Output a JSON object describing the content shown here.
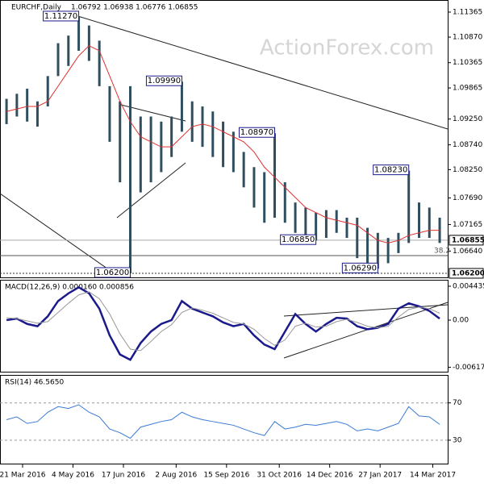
{
  "chart_data": [
    {
      "type": "ohlc",
      "title": "EURCHF,Daily",
      "quote": "1.06792 1.06938 1.06776 1.06855",
      "watermark": "ActionForex.com",
      "x": [
        -14,
        -5,
        4,
        13,
        22,
        31,
        40,
        49,
        58,
        67,
        76,
        85,
        94,
        103,
        112,
        121,
        130,
        139,
        148,
        157,
        166,
        175,
        184,
        193,
        202,
        211,
        220,
        229,
        238,
        247,
        256,
        265,
        274,
        283,
        292,
        301,
        310,
        319,
        328,
        337,
        346,
        355,
        364
      ],
      "xlim": [
        -19.7,
        371
      ],
      "xticks": [
        {
          "value": 0,
          "label": "21 Mar 2016"
        },
        {
          "value": 44,
          "label": "4 May 2016"
        },
        {
          "value": 88,
          "label": "17 Jun 2016"
        },
        {
          "value": 134,
          "label": "2 Aug 2016"
        },
        {
          "value": 178,
          "label": "15 Sep 2016"
        },
        {
          "value": 224,
          "label": "31 Oct 2016"
        },
        {
          "value": 268,
          "label": "14 Dec 2016"
        },
        {
          "value": 312,
          "label": "27 Jan 2017"
        },
        {
          "value": 358,
          "label": "14 Mar 2017"
        }
      ],
      "series": [
        {
          "name": "high",
          "color": "#2f4f5f",
          "values": [
            1.0965,
            1.0975,
            1.0985,
            1.096,
            1.101,
            1.1075,
            1.109,
            1.1127,
            1.111,
            1.108,
            1.099,
            1.096,
            1.099,
            1.093,
            1.093,
            1.092,
            1.093,
            1.0999,
            1.096,
            1.095,
            1.094,
            1.092,
            1.09,
            1.086,
            1.083,
            1.082,
            1.0897,
            1.08,
            1.076,
            1.075,
            1.074,
            1.0745,
            1.0745,
            1.073,
            1.073,
            1.071,
            1.07,
            1.069,
            1.07,
            1.0823,
            1.076,
            1.075,
            1.073
          ]
        },
        {
          "name": "low",
          "color": "#2f4f5f",
          "values": [
            1.0915,
            1.093,
            1.092,
            1.091,
            1.095,
            1.101,
            1.103,
            1.106,
            1.104,
            1.099,
            1.088,
            1.08,
            1.062,
            1.078,
            1.08,
            1.082,
            1.085,
            1.09,
            1.088,
            1.087,
            1.085,
            1.083,
            1.082,
            1.079,
            1.075,
            1.072,
            1.073,
            1.072,
            1.07,
            1.069,
            1.0685,
            1.069,
            1.07,
            1.069,
            1.065,
            1.064,
            1.0629,
            1.064,
            1.066,
            1.068,
            1.069,
            1.069,
            1.068
          ]
        },
        {
          "name": "ma",
          "color": "#e03030",
          "values": [
            1.094,
            1.0945,
            1.095,
            1.095,
            1.096,
            1.099,
            1.102,
            1.105,
            1.107,
            1.106,
            1.101,
            1.096,
            1.092,
            1.089,
            1.088,
            1.087,
            1.087,
            1.089,
            1.091,
            1.0915,
            1.091,
            1.09,
            1.089,
            1.088,
            1.086,
            1.083,
            1.081,
            1.079,
            1.077,
            1.075,
            1.074,
            1.073,
            1.0725,
            1.072,
            1.0715,
            1.07,
            1.0685,
            1.068,
            1.0685,
            1.0695,
            1.07,
            1.0705,
            1.0705
          ]
        }
      ],
      "ylim": [
        1.06104,
        1.11604
      ],
      "yticks": [
        1.11365,
        {
          "value": 1.1087,
          "label": "1.10870"
        },
        1.10365,
        1.09865,
        {
          "value": 1.0925,
          "label": "1.09250"
        },
        {
          "value": 1.0874,
          "label": "1.08740"
        },
        {
          "value": 1.0825,
          "label": "1.08250"
        },
        {
          "value": 1.0769,
          "label": "1.07690"
        },
        1.07165,
        {
          "value": 1.0664,
          "label": "1.06640"
        }
      ],
      "current": {
        "value": 1.06855,
        "label": "1.06855"
      },
      "support": {
        "value": 1.062,
        "label": "1.06200"
      },
      "fib": {
        "value": 1.0655,
        "label": "38.2"
      },
      "annotations": [
        {
          "x": 49,
          "value": 1.1127,
          "label": "1.11270"
        },
        {
          "x": 139,
          "value": 1.0999,
          "label": "1.09990"
        },
        {
          "x": 220,
          "value": 1.0897,
          "label": "1.08970"
        },
        {
          "x": 337,
          "value": 1.0823,
          "label": "1.08230"
        },
        {
          "x": 256,
          "value": 1.0685,
          "label": "1.06850"
        },
        {
          "x": 310,
          "value": 1.0629,
          "label": "1.06290"
        },
        {
          "x": 94,
          "value": 1.062,
          "label": "1.06200"
        }
      ]
    },
    {
      "type": "line",
      "title": "MACD(12,26,9) 0.000160 0.000856",
      "series": [
        {
          "name": "macd",
          "color": "#1a1a8c",
          "values": [
            0.0,
            0.0002,
            -0.0005,
            -0.0008,
            0.0005,
            0.0025,
            0.0035,
            0.0043,
            0.0035,
            0.0015,
            -0.002,
            -0.0045,
            -0.0052,
            -0.003,
            -0.0015,
            -0.0005,
            0.0,
            0.0025,
            0.0015,
            0.001,
            0.0005,
            -0.0003,
            -0.0008,
            -0.0005,
            -0.002,
            -0.0032,
            -0.0038,
            -0.0015,
            0.0008,
            -0.0005,
            -0.0015,
            -0.0005,
            0.0003,
            0.0002,
            -0.0008,
            -0.0012,
            -0.001,
            -0.0005,
            0.0015,
            0.0022,
            0.0018,
            0.0012,
            0.0002
          ]
        },
        {
          "name": "signal",
          "color": "#999999",
          "values": [
            0.0003,
            0.0002,
            -0.0001,
            -0.0004,
            -0.0002,
            0.001,
            0.0022,
            0.0033,
            0.0037,
            0.0028,
            0.0008,
            -0.0018,
            -0.0038,
            -0.004,
            -0.0028,
            -0.0015,
            -0.0006,
            0.001,
            0.0016,
            0.0013,
            0.0009,
            0.0003,
            -0.0003,
            -0.0005,
            -0.0012,
            -0.0024,
            -0.0033,
            -0.0026,
            -0.0008,
            -0.0004,
            -0.0009,
            -0.0008,
            -0.0002,
            0.0001,
            -0.0003,
            -0.0008,
            -0.001,
            -0.0008,
            0.0004,
            0.0014,
            0.0017,
            0.0015,
            0.0009
          ]
        }
      ],
      "ylim": [
        -0.00686,
        0.00528
      ],
      "yticks": [
        0.004435,
        {
          "value": 0,
          "label": "0.00"
        },
        -0.00617
      ]
    },
    {
      "type": "line",
      "title": "RSI(14) 46.5650",
      "series": [
        {
          "name": "rsi",
          "color": "#3a7bd5",
          "values": [
            52,
            55,
            48,
            50,
            60,
            66,
            64,
            68,
            60,
            55,
            42,
            38,
            32,
            44,
            47,
            50,
            52,
            60,
            55,
            52,
            50,
            48,
            46,
            42,
            38,
            35,
            50,
            42,
            44,
            47,
            46,
            48,
            50,
            47,
            40,
            42,
            40,
            44,
            48,
            66,
            56,
            55,
            47
          ]
        }
      ],
      "ylim": [
        4,
        100
      ],
      "yticks": [
        70,
        30
      ]
    }
  ]
}
